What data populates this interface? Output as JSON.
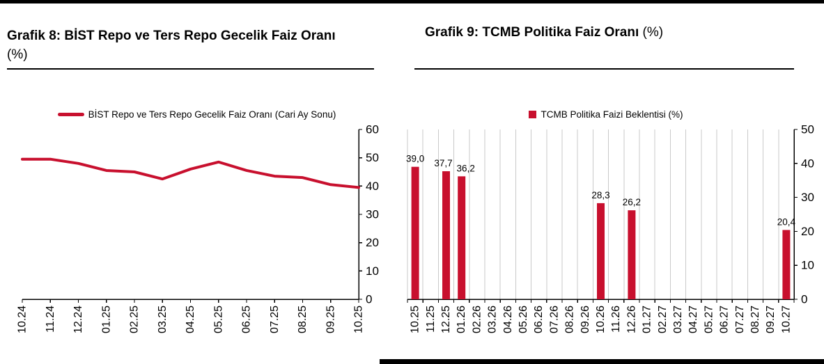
{
  "page": {
    "background": "#FFFFFF",
    "accent_red": "#C8102E",
    "divider_color": "#000000"
  },
  "grafik8": {
    "title_bold": "Grafik 8:  BİST Repo ve Ters Repo Gecelik Faiz Oranı",
    "title_suffix": " (%)",
    "legend_label": "BİST Repo ve Ters Repo Gecelik Faiz Oranı (Cari Ay Sonu)"
  },
  "grafik9": {
    "title_bold": "Grafik 9: TCMB Politika Faiz Oranı",
    "title_suffix": " (%)",
    "legend_label": "TCMB Politika Faizi Beklentisi (%)"
  },
  "chart_data": [
    {
      "type": "line",
      "title": "Grafik 8: BİST Repo ve Ters Repo Gecelik Faiz Oranı (%)",
      "legend": [
        "BİST Repo ve Ters Repo Gecelik Faiz Oranı (Cari Ay Sonu)"
      ],
      "legend_position": "top",
      "categories": [
        "10.24",
        "11.24",
        "12.24",
        "01.25",
        "02.25",
        "03.25",
        "04.25",
        "05.25",
        "06.25",
        "07.25",
        "08.25",
        "09.25",
        "10.25"
      ],
      "values": [
        49.5,
        49.5,
        48,
        45.5,
        45,
        42.5,
        46,
        48.5,
        45.5,
        43.5,
        43,
        40.5,
        39.5
      ],
      "xlabel": "",
      "ylabel": "",
      "ylim": [
        0,
        60
      ],
      "ytick_step": 10,
      "yaxis_side": "right",
      "grid": false,
      "line_color": "#C8102E"
    },
    {
      "type": "bar",
      "title": "Grafik 9: TCMB Politika Faiz Oranı (%)",
      "legend": [
        "TCMB Politika Faizi Beklentisi (%)"
      ],
      "legend_position": "top",
      "categories": [
        "10.25",
        "11.25",
        "12.25",
        "01.26",
        "02.26",
        "03.26",
        "04.26",
        "05.26",
        "06.26",
        "07.26",
        "08.26",
        "09.26",
        "10.26",
        "11.26",
        "12.26",
        "01.27",
        "02.27",
        "03.27",
        "04.27",
        "05.27",
        "06.27",
        "07.27",
        "08.27",
        "09.27",
        "10.27"
      ],
      "values": [
        39.0,
        null,
        37.7,
        36.2,
        null,
        null,
        null,
        null,
        null,
        null,
        null,
        null,
        28.3,
        null,
        26.2,
        null,
        null,
        null,
        null,
        null,
        null,
        null,
        null,
        null,
        20.4
      ],
      "data_labels": [
        "39,0",
        null,
        "37,7",
        "36,2",
        null,
        null,
        null,
        null,
        null,
        null,
        null,
        null,
        "28,3",
        null,
        "26,2",
        null,
        null,
        null,
        null,
        null,
        null,
        null,
        null,
        null,
        "20,4"
      ],
      "label_dx": {
        "2": -4,
        "3": 6
      },
      "xlabel": "",
      "ylabel": "",
      "ylim": [
        0,
        50
      ],
      "ytick_step": 10,
      "yaxis_side": "right",
      "grid": true,
      "gridline_color": "#C9C9C9",
      "bar_color": "#C8102E"
    }
  ]
}
